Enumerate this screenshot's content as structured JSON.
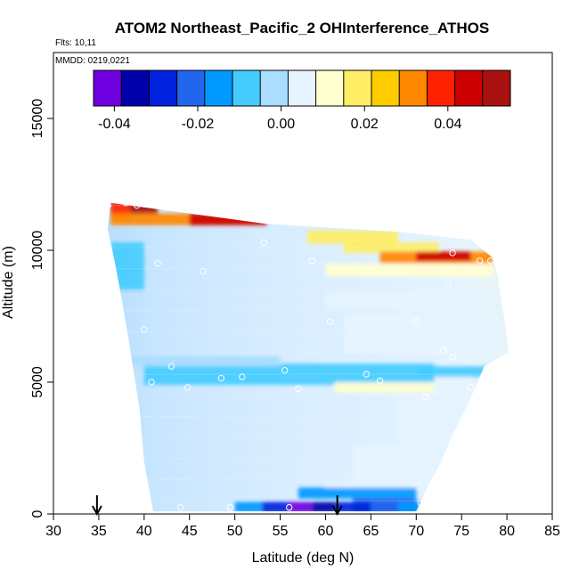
{
  "chart_data": {
    "type": "heatmap",
    "title": "ATOM2 Northeast_Pacific_2 OHInterference_ATHOS",
    "flights_label": "Flts: 10,11",
    "dates_label": "MMDD: 0219,0221",
    "xlabel": "Latitude (deg N)",
    "ylabel": "Altitude (m)",
    "xlim": [
      30,
      85
    ],
    "ylim": [
      0,
      17500
    ],
    "x_ticks": [
      30,
      35,
      40,
      45,
      50,
      55,
      60,
      65,
      70,
      75,
      80,
      85
    ],
    "y_ticks": [
      0,
      5000,
      10000,
      15000
    ],
    "colorbar": {
      "vmin": -0.045,
      "vmax": 0.055,
      "ticks": [
        -0.04,
        -0.02,
        0.0,
        0.02,
        0.04
      ],
      "tick_labels": [
        "-0.04",
        "-0.02",
        "0.00",
        "0.02",
        "0.04"
      ],
      "colors": [
        "#6f00e0",
        "#0000aa",
        "#0022dd",
        "#2266ee",
        "#0099ff",
        "#44ccff",
        "#aaddff",
        "#e6f4ff",
        "#ffffd0",
        "#ffee66",
        "#ffcc00",
        "#ff8800",
        "#ff2200",
        "#cc0000",
        "#aa1111"
      ]
    },
    "profile_boundary": {
      "lat": [
        36.0,
        36.8,
        37.5,
        38.2,
        38.8,
        39.5,
        40.0,
        41.0,
        50.0,
        60.0,
        65.0,
        70.0,
        71.5,
        72.5,
        74.0,
        75.5,
        76.5,
        77.5,
        78.5,
        79.5,
        80.2,
        79.8,
        79.3,
        79.0,
        78.5,
        76.0,
        68.0,
        53.5,
        36.3
      ],
      "alt": [
        10800,
        9500,
        8200,
        6800,
        5500,
        4000,
        2000,
        100,
        100,
        100,
        100,
        100,
        1200,
        1800,
        3000,
        4000,
        4800,
        5600,
        5800,
        6000,
        6100,
        7200,
        8200,
        9000,
        9700,
        10400,
        10700,
        11000,
        11800
      ]
    },
    "anomalies": [
      {
        "lat": [
          36.3,
          38.5
        ],
        "alt": [
          11200,
          11950
        ],
        "value": 0.04
      },
      {
        "lat": [
          38.5,
          41.5
        ],
        "alt": [
          11350,
          11950
        ],
        "value": 0.055
      },
      {
        "lat": [
          36.3,
          53.5
        ],
        "alt": [
          10950,
          11400
        ],
        "value": 0.035
      },
      {
        "lat": [
          45.0,
          53.5
        ],
        "alt": [
          10950,
          11400
        ],
        "value": 0.045
      },
      {
        "lat": [
          58.0,
          68.0
        ],
        "alt": [
          10250,
          10750
        ],
        "value": 0.015
      },
      {
        "lat": [
          62.0,
          72.5
        ],
        "alt": [
          9900,
          10300
        ],
        "value": 0.02
      },
      {
        "lat": [
          66.0,
          78.5
        ],
        "alt": [
          9500,
          9950
        ],
        "value": 0.03
      },
      {
        "lat": [
          70.0,
          76.0
        ],
        "alt": [
          9600,
          9950
        ],
        "value": 0.045
      },
      {
        "lat": [
          60.0,
          78.5
        ],
        "alt": [
          9000,
          9500
        ],
        "value": 0.012
      },
      {
        "lat": [
          36.3,
          40.0
        ],
        "alt": [
          8500,
          10300
        ],
        "value": -0.008
      },
      {
        "lat": [
          60.0,
          78.5
        ],
        "alt": [
          7800,
          8400
        ],
        "value": 0.008
      },
      {
        "lat": [
          62.0,
          79.5
        ],
        "alt": [
          6100,
          7600
        ],
        "value": 0.006
      },
      {
        "lat": [
          40.0,
          72.0
        ],
        "alt": [
          4900,
          5700
        ],
        "value": -0.006
      },
      {
        "lat": [
          38.0,
          55.0
        ],
        "alt": [
          5600,
          6000
        ],
        "value": -0.004
      },
      {
        "lat": [
          61.0,
          72.0
        ],
        "alt": [
          4600,
          5000
        ],
        "value": 0.01
      },
      {
        "lat": [
          70.0,
          78.5
        ],
        "alt": [
          5200,
          5600
        ],
        "value": -0.008
      },
      {
        "lat": [
          72.0,
          76.0
        ],
        "alt": [
          4500,
          5200
        ],
        "value": 0.004
      },
      {
        "lat": [
          68.0,
          72.0
        ],
        "alt": [
          1200,
          4500
        ],
        "value": 0.008
      },
      {
        "lat": [
          60.0,
          72.5
        ],
        "alt": [
          1000,
          1200
        ],
        "value": 0.006
      },
      {
        "lat": [
          63.0,
          70.0
        ],
        "alt": [
          1200,
          2600
        ],
        "value": 0.004
      },
      {
        "lat": [
          57.0,
          70.0
        ],
        "alt": [
          580,
          1000
        ],
        "value": -0.014
      },
      {
        "lat": [
          63.0,
          70.0
        ],
        "alt": [
          0,
          600
        ],
        "value": -0.02
      },
      {
        "lat": [
          50.0,
          53.0
        ],
        "alt": [
          50,
          460
        ],
        "value": -0.018
      },
      {
        "lat": [
          53.0,
          56.0
        ],
        "alt": [
          50,
          460
        ],
        "value": -0.03
      },
      {
        "lat": [
          56.0,
          58.5
        ],
        "alt": [
          50,
          460
        ],
        "value": -0.043
      },
      {
        "lat": [
          58.5,
          61.0
        ],
        "alt": [
          50,
          460
        ],
        "value": -0.035
      },
      {
        "lat": [
          61.0,
          65.0
        ],
        "alt": [
          50,
          460
        ],
        "value": -0.028
      },
      {
        "lat": [
          65.0,
          68.0
        ],
        "alt": [
          50,
          460
        ],
        "value": -0.02
      },
      {
        "lat": [
          68.0,
          71.0
        ],
        "alt": [
          50,
          460
        ],
        "value": -0.012
      }
    ],
    "sample_points": [
      {
        "lat": 36.0,
        "alt": 11700
      },
      {
        "lat": 38.0,
        "alt": 11800
      },
      {
        "lat": 39.2,
        "alt": 11700
      },
      {
        "lat": 35.5,
        "alt": 10800
      },
      {
        "lat": 53.2,
        "alt": 10300
      },
      {
        "lat": 41.5,
        "alt": 9500
      },
      {
        "lat": 46.5,
        "alt": 9200
      },
      {
        "lat": 58.5,
        "alt": 9600
      },
      {
        "lat": 74.0,
        "alt": 9900
      },
      {
        "lat": 77.0,
        "alt": 9600
      },
      {
        "lat": 78.2,
        "alt": 9600
      },
      {
        "lat": 73.5,
        "alt": 8800
      },
      {
        "lat": 60.5,
        "alt": 7300
      },
      {
        "lat": 70.0,
        "alt": 7300
      },
      {
        "lat": 40.0,
        "alt": 7000
      },
      {
        "lat": 73.0,
        "alt": 6200
      },
      {
        "lat": 74.0,
        "alt": 5950
      },
      {
        "lat": 43.0,
        "alt": 5600
      },
      {
        "lat": 55.5,
        "alt": 5450
      },
      {
        "lat": 48.5,
        "alt": 5150
      },
      {
        "lat": 50.8,
        "alt": 5200
      },
      {
        "lat": 64.5,
        "alt": 5300
      },
      {
        "lat": 66.0,
        "alt": 5050
      },
      {
        "lat": 40.8,
        "alt": 5000
      },
      {
        "lat": 44.8,
        "alt": 4800
      },
      {
        "lat": 57.0,
        "alt": 4750
      },
      {
        "lat": 76.0,
        "alt": 4800
      },
      {
        "lat": 71.0,
        "alt": 4450
      },
      {
        "lat": 40.5,
        "alt": 200
      },
      {
        "lat": 44.0,
        "alt": 250
      },
      {
        "lat": 49.5,
        "alt": 250
      },
      {
        "lat": 56.0,
        "alt": 250
      },
      {
        "lat": 70.5,
        "alt": 400
      }
    ],
    "arrows_lat": [
      34.8,
      61.3
    ]
  }
}
